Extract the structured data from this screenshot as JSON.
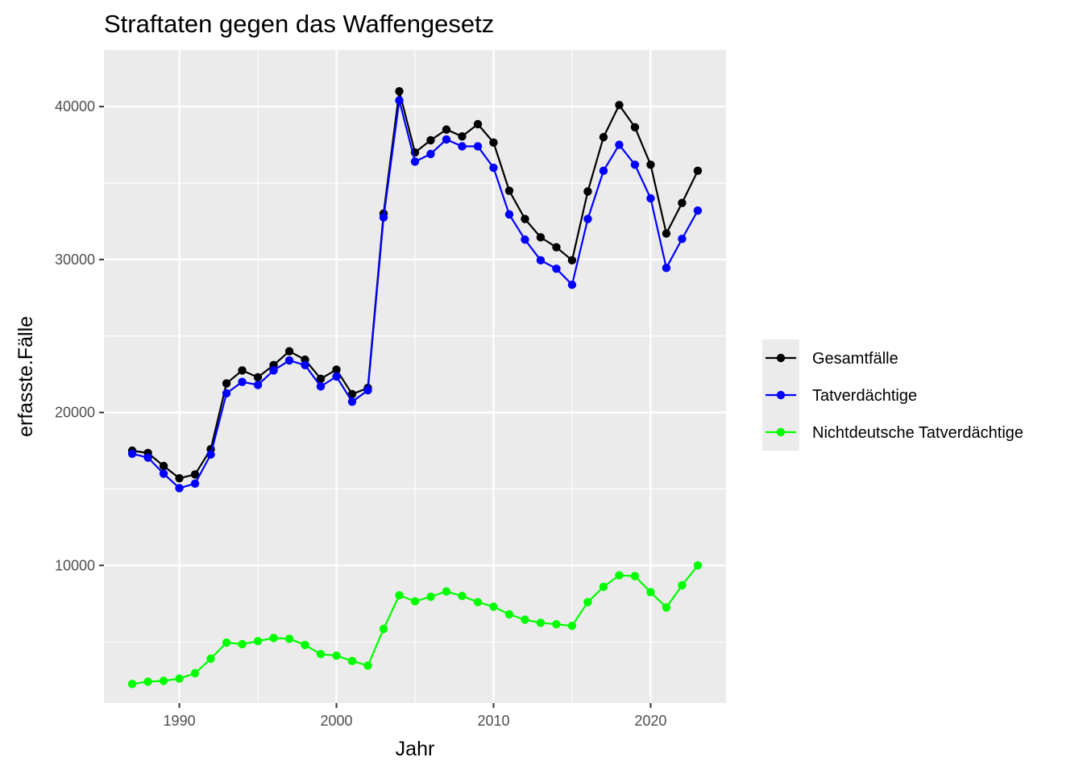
{
  "chart_data": {
    "type": "line",
    "title": "Straftaten gegen das Waffengesetz",
    "xlabel": "Jahr",
    "ylabel": "erfasste.Fälle",
    "xlim": [
      1985.2,
      2024.8
    ],
    "ylim": [
      1000,
      43700
    ],
    "x_ticks": [
      1990,
      2000,
      2010,
      2020
    ],
    "x_tick_labels": [
      "1990",
      "2000",
      "2010",
      "2020"
    ],
    "y_ticks": [
      10000,
      20000,
      30000,
      40000
    ],
    "y_tick_labels": [
      "10000",
      "20000",
      "30000",
      "40000"
    ],
    "grid": true,
    "legend_position": "right",
    "x": [
      1987,
      1988,
      1989,
      1990,
      1991,
      1992,
      1993,
      1994,
      1995,
      1996,
      1997,
      1998,
      1999,
      2000,
      2001,
      2002,
      2003,
      2004,
      2005,
      2006,
      2007,
      2008,
      2009,
      2010,
      2011,
      2012,
      2013,
      2014,
      2015,
      2016,
      2017,
      2018,
      2019,
      2020,
      2021,
      2022,
      2023
    ],
    "series": [
      {
        "name": "Gesamtfälle",
        "color": "#000000",
        "values": [
          17500,
          17350,
          16500,
          15700,
          15950,
          17600,
          21900,
          22750,
          22300,
          23100,
          24000,
          23450,
          22200,
          22800,
          21200,
          21600,
          33000,
          41000,
          37000,
          37800,
          38500,
          38050,
          38850,
          37650,
          34500,
          32650,
          31450,
          30800,
          29950,
          34450,
          38000,
          40100,
          38650,
          36200,
          31700,
          33700,
          35800
        ]
      },
      {
        "name": "Tatverdächtige",
        "color": "#0000ff",
        "values": [
          17300,
          17050,
          16000,
          15050,
          15350,
          17250,
          21250,
          22000,
          21800,
          22750,
          23400,
          23100,
          21700,
          22350,
          20700,
          21450,
          32750,
          40400,
          36400,
          36900,
          37850,
          37400,
          37400,
          36000,
          32950,
          31300,
          29950,
          29400,
          28350,
          32650,
          35800,
          37500,
          36200,
          34000,
          29450,
          31350,
          33200
        ]
      },
      {
        "name": "Nichtdeutsche Tatverdächtige",
        "color": "#00ff00",
        "values": [
          2250,
          2400,
          2450,
          2600,
          2950,
          3900,
          4950,
          4850,
          5050,
          5250,
          5200,
          4800,
          4200,
          4100,
          3750,
          3450,
          5850,
          8050,
          7650,
          7950,
          8300,
          8000,
          7600,
          7300,
          6800,
          6450,
          6250,
          6150,
          6050,
          7600,
          8600,
          9350,
          9300,
          8250,
          7250,
          8700,
          10000
        ]
      }
    ]
  }
}
